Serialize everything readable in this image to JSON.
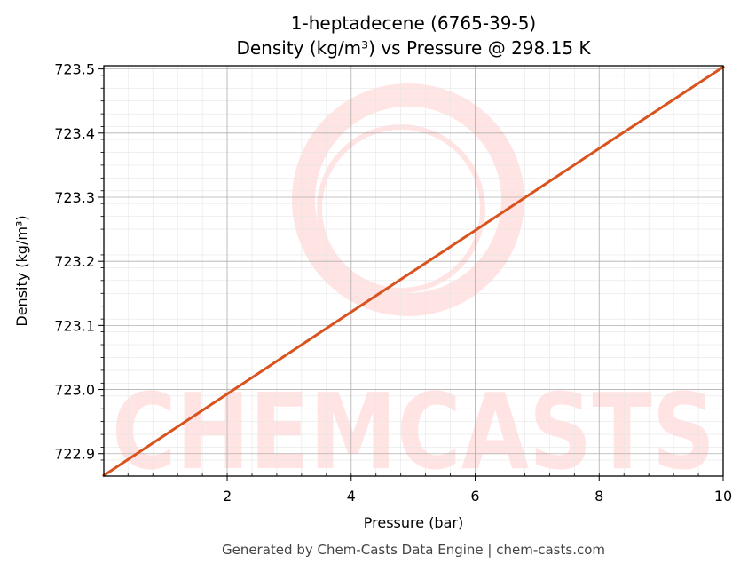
{
  "chart_data": {
    "type": "line",
    "title": "1-heptadecene (6765-39-5)",
    "subtitle": "Density (kg/m³) vs Pressure @ 298.15 K",
    "xlabel": "Pressure (bar)",
    "ylabel": "Density (kg/m³)",
    "xlim": [
      0.01,
      10
    ],
    "ylim": [
      722.865,
      723.505
    ],
    "x_ticks": [
      2,
      4,
      6,
      8,
      10
    ],
    "y_ticks": [
      722.9,
      723.0,
      723.1,
      723.2,
      723.3,
      723.4,
      723.5
    ],
    "y_tick_labels": [
      "722.9",
      "723.0",
      "723.1",
      "723.2",
      "723.3",
      "723.4",
      "723.5"
    ],
    "grid": true,
    "series": [
      {
        "color": "#d9531e",
        "x": [
          0.01,
          2,
          4,
          6,
          8,
          10
        ],
        "y": [
          722.866,
          722.993,
          723.121,
          723.248,
          723.376,
          723.503
        ]
      }
    ]
  },
  "watermark": "CHEMCASTS",
  "footer": "Generated by Chem-Casts Data Engine | chem-casts.com"
}
